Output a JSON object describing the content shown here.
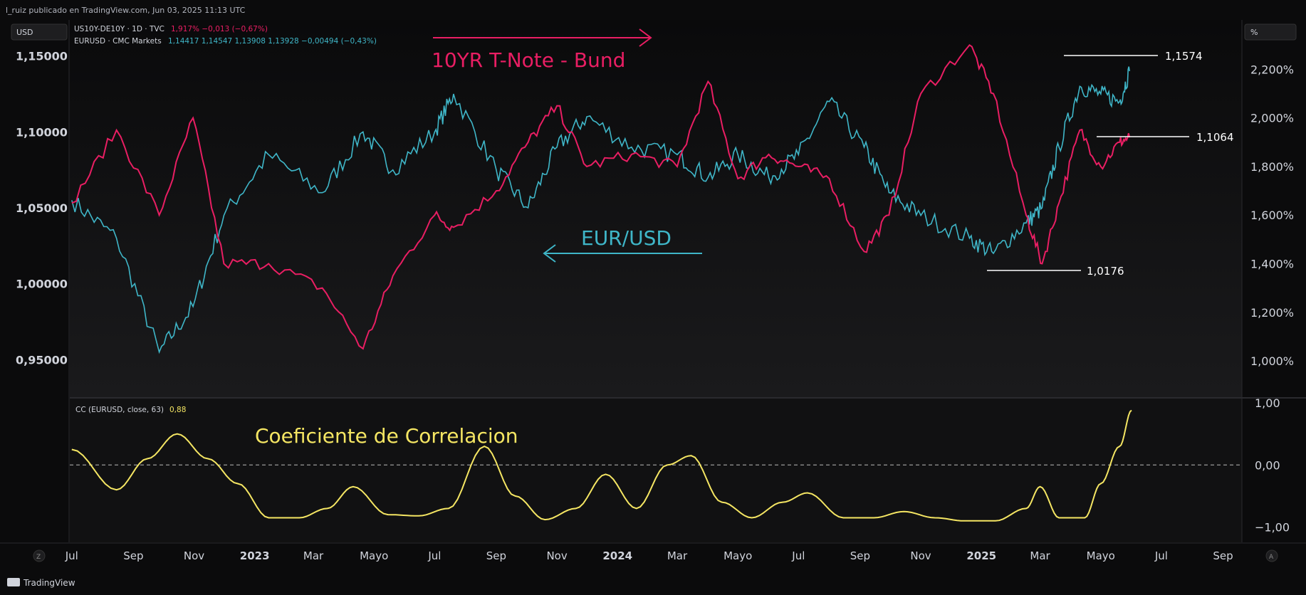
{
  "header": {
    "publisher": "l_ruiz publicado en TradingView.com, Jun 03, 2025 11:13 UTC",
    "left_unit_button": "USD",
    "right_unit_button": "%",
    "symbol1": {
      "name": "US10Y-DE10Y · 1D · TVC",
      "values": "1,917% −0,013 (−0,67%)",
      "color": "#e91e63"
    },
    "symbol2": {
      "name": "EURUSD · CMC Markets",
      "values": "1,14417 1,14547 1,13908 1,13928 −0,00494 (−0,43%)",
      "color": "#3fb6c8"
    }
  },
  "annotations": {
    "spread_label": "10YR T-Note - Bund",
    "eurusd_label": "EUR/USD",
    "correlation_label": "Coeficiente de Correlacion",
    "level_high": "1,1574",
    "level_mid": "1,1064",
    "level_low": "1,0176"
  },
  "indicator": {
    "name": "CC (EURUSD, close, 63)",
    "value": "0,88"
  },
  "footer": {
    "brand": "TradingView",
    "z_button": "Z",
    "a_button": "A"
  },
  "colors": {
    "spread": "#e91e63",
    "eurusd": "#3fb6c8",
    "correlation": "#f5e663",
    "background": "#0b0b0c"
  },
  "chart_data": [
    {
      "type": "line",
      "x_axis_ticks": [
        "Jul",
        "Sep",
        "Nov",
        "2023",
        "Mar",
        "Mayo",
        "Jul",
        "Sep",
        "Nov",
        "2024",
        "Mar",
        "Mayo",
        "Jul",
        "Sep",
        "Nov",
        "2025",
        "Mar",
        "Mayo",
        "Jul",
        "Sep"
      ],
      "left_axis": {
        "ticks": [
          "1,15000",
          "1,10000",
          "1,05000",
          "1,00000",
          "0,95000"
        ],
        "ylim": [
          0.93,
          1.17
        ]
      },
      "right_axis": {
        "ticks": [
          "2,200%",
          "2,000%",
          "1,800%",
          "1,600%",
          "1,400%",
          "1,200%",
          "1,000%"
        ],
        "ylim": [
          0.88,
          2.38
        ]
      },
      "x": [
        "2022-07-01",
        "2022-08-15",
        "2022-09-27",
        "2022-10-31",
        "2022-12-01",
        "2023-01-15",
        "2023-03-10",
        "2023-04-20",
        "2023-05-20",
        "2023-07-01",
        "2023-07-20",
        "2023-09-01",
        "2023-10-03",
        "2023-11-01",
        "2023-12-01",
        "2024-01-15",
        "2024-03-01",
        "2024-04-01",
        "2024-05-01",
        "2024-06-01",
        "2024-07-01",
        "2024-08-01",
        "2024-09-05",
        "2024-09-30",
        "2024-11-01",
        "2024-12-20",
        "2025-01-13",
        "2025-02-15",
        "2025-03-03",
        "2025-03-20",
        "2025-04-10",
        "2025-05-01",
        "2025-05-20",
        "2025-05-30"
      ],
      "series": [
        {
          "name": "EURUSD · CMC Markets",
          "axis": "left",
          "values": [
            1.055,
            1.03,
            0.955,
            0.985,
            1.045,
            1.085,
            1.06,
            1.1,
            1.075,
            1.1,
            1.125,
            1.075,
            1.05,
            1.09,
            1.11,
            1.09,
            1.085,
            1.07,
            1.085,
            1.07,
            1.085,
            1.12,
            1.09,
            1.06,
            1.045,
            1.03,
            1.02,
            1.04,
            1.05,
            1.09,
            1.13,
            1.125,
            1.12,
            1.14
          ]
        },
        {
          "name": "US10Y-DE10Y · 1D · TVC",
          "axis": "right",
          "values": [
            1.65,
            1.95,
            1.6,
            2.0,
            1.4,
            1.4,
            1.3,
            1.05,
            1.35,
            1.6,
            1.55,
            1.7,
            1.9,
            2.05,
            1.8,
            1.85,
            1.8,
            2.15,
            1.75,
            1.85,
            1.8,
            1.75,
            1.45,
            1.6,
            2.1,
            2.3,
            2.1,
            1.6,
            1.4,
            1.65,
            1.95,
            1.8,
            1.9,
            1.92
          ]
        }
      ]
    },
    {
      "type": "line",
      "title": "CC (EURUSD, close, 63)",
      "y_axis": {
        "ticks": [
          "1,00",
          "0,00",
          "−1,00"
        ],
        "ylim": [
          -1.2,
          1.0
        ]
      },
      "reference_line": 0,
      "x": [
        "2022-07-01",
        "2022-08-15",
        "2022-09-15",
        "2022-10-15",
        "2022-11-15",
        "2022-12-15",
        "2023-01-15",
        "2023-02-15",
        "2023-03-15",
        "2023-04-10",
        "2023-05-15",
        "2023-06-15",
        "2023-07-15",
        "2023-08-20",
        "2023-09-20",
        "2023-10-20",
        "2023-11-20",
        "2023-12-20",
        "2024-01-20",
        "2024-02-20",
        "2024-03-15",
        "2024-04-15",
        "2024-05-15",
        "2024-06-15",
        "2024-07-10",
        "2024-08-15",
        "2024-09-15",
        "2024-10-15",
        "2024-11-15",
        "2024-12-15",
        "2025-01-15",
        "2025-02-15",
        "2025-03-01",
        "2025-03-20",
        "2025-04-15",
        "2025-05-01",
        "2025-05-20",
        "2025-06-01"
      ],
      "series": [
        {
          "name": "CC (EURUSD, close, 63)",
          "values": [
            0.25,
            -0.4,
            0.1,
            0.5,
            0.1,
            -0.3,
            -0.85,
            -0.85,
            -0.7,
            -0.35,
            -0.8,
            -0.82,
            -0.7,
            0.3,
            -0.5,
            -0.88,
            -0.7,
            -0.15,
            -0.7,
            0.0,
            0.15,
            -0.6,
            -0.85,
            -0.6,
            -0.45,
            -0.85,
            -0.85,
            -0.75,
            -0.85,
            -0.9,
            -0.9,
            -0.7,
            -0.35,
            -0.85,
            -0.85,
            -0.3,
            0.3,
            0.88
          ]
        }
      ]
    }
  ]
}
